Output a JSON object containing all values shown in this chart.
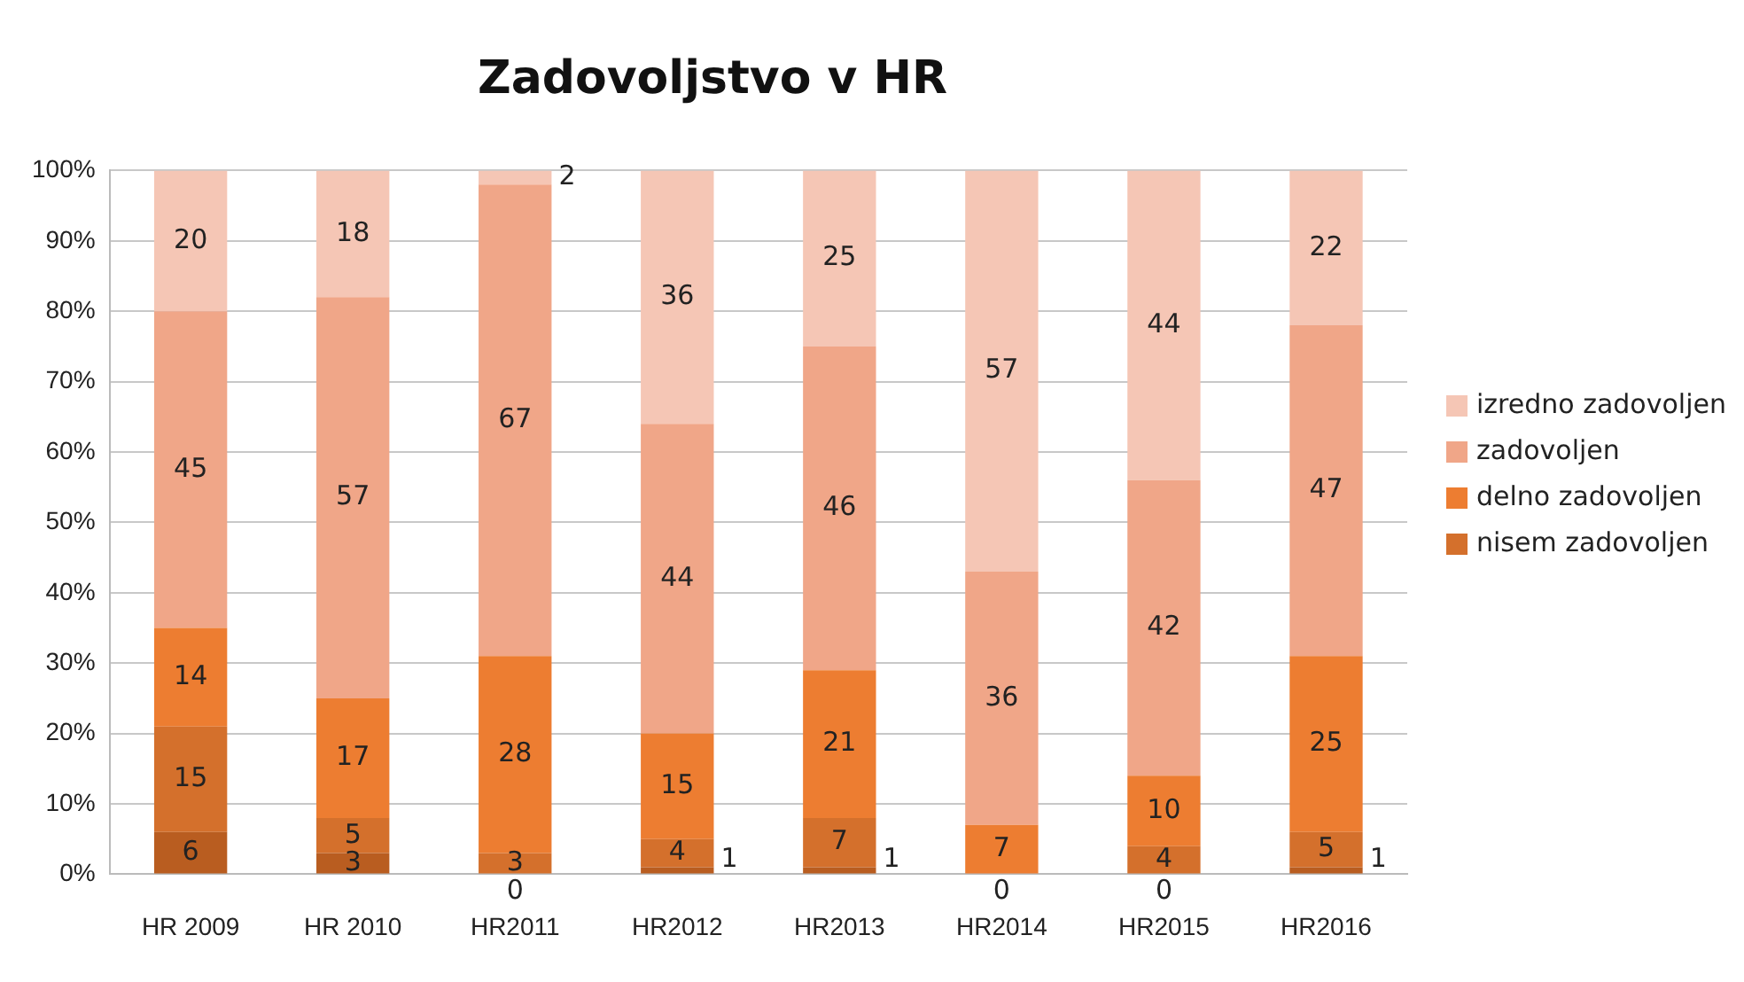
{
  "chart_data": {
    "type": "bar",
    "title": "Zadovoljstvo v HR",
    "stacked": true,
    "categories": [
      "HR 2009",
      "HR 2010",
      "HR2011",
      "HR2012",
      "HR2013",
      "HR2014",
      "HR2015",
      "HR2016"
    ],
    "series": [
      {
        "color": "#b95d20",
        "values": [
          6,
          3,
          0,
          1,
          1,
          0,
          0,
          1
        ],
        "value_labels": [
          "6",
          "3",
          null,
          "1",
          "1",
          null,
          null,
          "1"
        ]
      },
      {
        "name": "nisem zadovoljen",
        "color": "#d4702c",
        "values": [
          15,
          5,
          3,
          4,
          7,
          0,
          4,
          5
        ],
        "value_labels": [
          "15",
          "5",
          "3",
          "4",
          "7",
          null,
          "4",
          "5"
        ]
      },
      {
        "name": "delno zadovoljen",
        "color": "#ed7d31",
        "values": [
          14,
          17,
          28,
          15,
          21,
          7,
          10,
          25
        ],
        "value_labels": [
          "14",
          "17",
          "28",
          "15",
          "21",
          "7",
          "10",
          "25"
        ]
      },
      {
        "name": "zadovoljen",
        "color": "#f0a688",
        "values": [
          45,
          57,
          67,
          44,
          46,
          36,
          42,
          47
        ],
        "value_labels": [
          "45",
          "57",
          "67",
          "44",
          "46",
          "36",
          "42",
          "47"
        ]
      },
      {
        "name": "izredno zadovoljen",
        "color": "#f5c6b5",
        "values": [
          20,
          18,
          2,
          36,
          25,
          57,
          44,
          22
        ],
        "value_labels": [
          "20",
          "18",
          "2",
          "36",
          "25",
          "57",
          "44",
          "22"
        ]
      }
    ],
    "annotations": [
      {
        "text": "0",
        "x": "HR2011",
        "y": 0
      },
      {
        "text": "0",
        "x": "HR2014",
        "y": 0
      },
      {
        "text": "0",
        "x": "HR2015",
        "y": 0
      }
    ],
    "ylim": [
      0,
      100
    ],
    "yticks": [
      {
        "value": 0,
        "label": "0%"
      },
      {
        "value": 10,
        "label": "10%"
      },
      {
        "value": 20,
        "label": "20%"
      },
      {
        "value": 30,
        "label": "30%"
      },
      {
        "value": 40,
        "label": "40%"
      },
      {
        "value": 50,
        "label": "50%"
      },
      {
        "value": 60,
        "label": "60%"
      },
      {
        "value": 70,
        "label": "70%"
      },
      {
        "value": 80,
        "label": "80%"
      },
      {
        "value": 90,
        "label": "90%"
      },
      {
        "value": 100,
        "label": "100%"
      }
    ],
    "grid": "y",
    "legend": "right"
  }
}
